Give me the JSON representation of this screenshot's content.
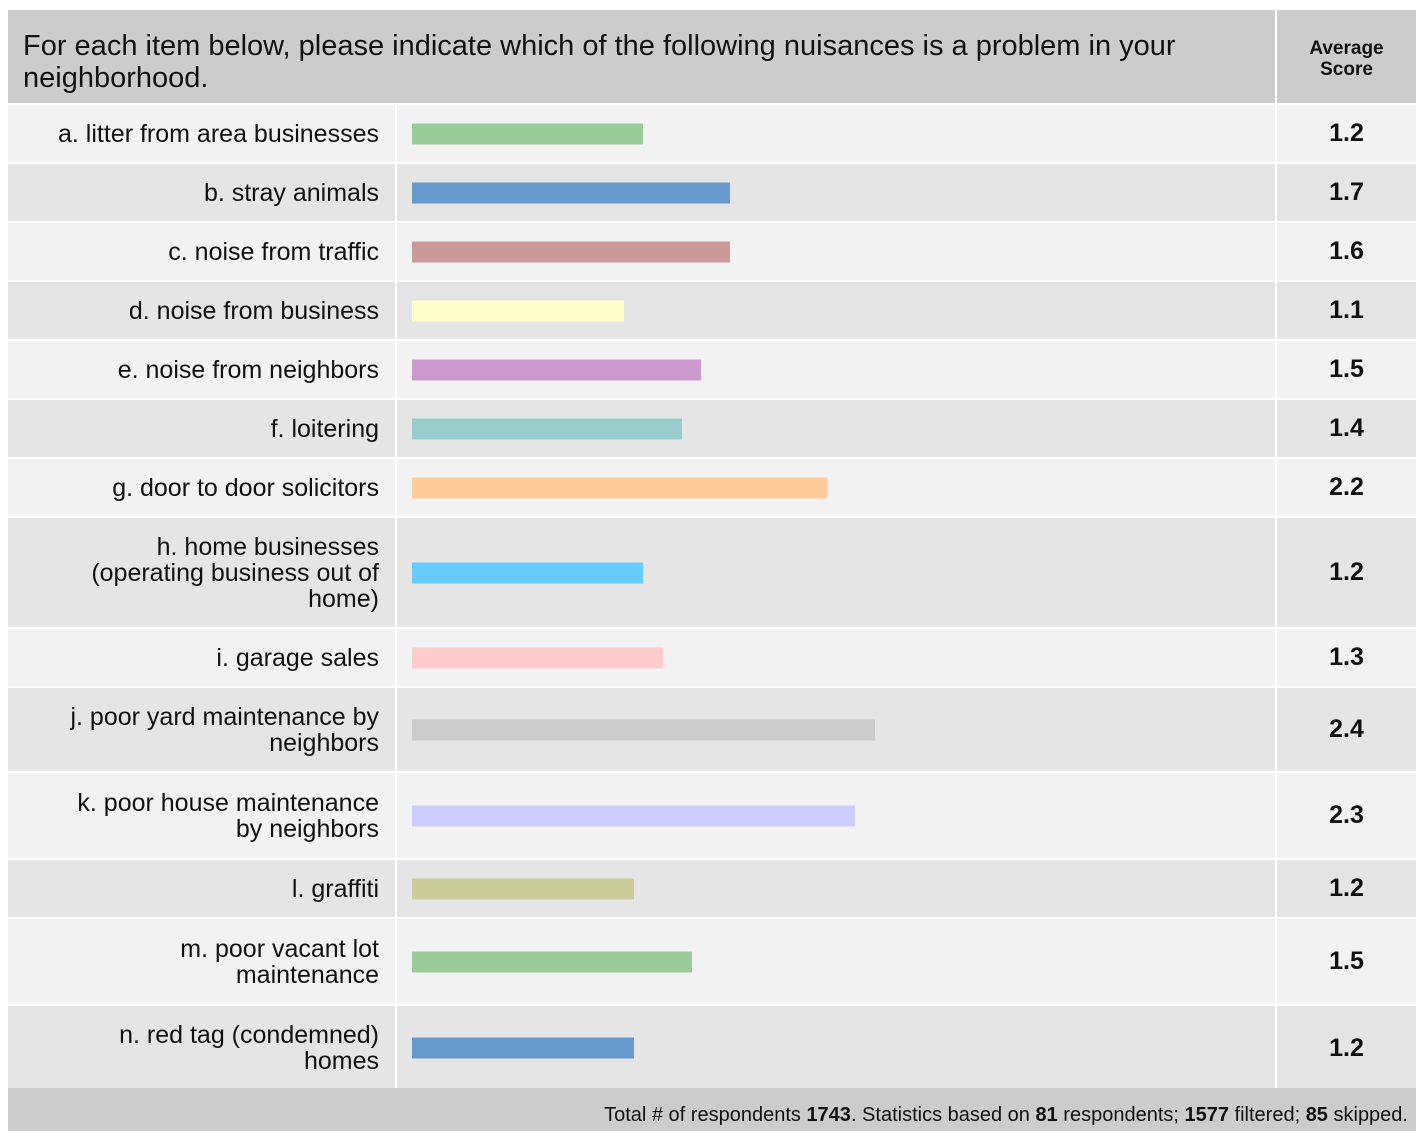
{
  "question": "For each item below, please indicate which of the following nuisances is a problem in your neighborhood.",
  "score_header_line1": "Average",
  "score_header_line2": "Score",
  "chart_data": {
    "type": "bar",
    "orientation": "horizontal",
    "xlim": [
      0,
      5
    ],
    "categories": [
      "a.  litter from area businesses",
      "b.  stray animals",
      "c.  noise from traffic",
      "d.  noise from business",
      "e.  noise from neighbors",
      "f.   loitering",
      "g.  door to door solicitors",
      "h.  home businesses (operating business out of home)",
      "i.   garage sales",
      "j.   poor yard maintenance by neighbors",
      "k.  poor house maintenance by neighbors",
      "l.   graffiti",
      "m. poor vacant lot maintenance",
      "n.  red tag (condemned) homes"
    ],
    "values": [
      1.2,
      1.65,
      1.65,
      1.1,
      1.5,
      1.4,
      2.15,
      1.2,
      1.3,
      2.4,
      2.3,
      1.15,
      1.45,
      1.15
    ],
    "colors": [
      "#99cc99",
      "#6699cc",
      "#cc9999",
      "#ffffcc",
      "#cc99cc",
      "#99cccc",
      "#ffcc99",
      "#66ccff",
      "#ffcccc",
      "#cccccc",
      "#ccccff",
      "#cccc99",
      "#99cc99",
      "#6699cc"
    ]
  },
  "rows": [
    {
      "label": "a.  litter from area businesses",
      "score": "1.2"
    },
    {
      "label": "b.  stray animals",
      "score": "1.7"
    },
    {
      "label": "c.  noise from traffic",
      "score": "1.6"
    },
    {
      "label": "d.  noise from business",
      "score": "1.1"
    },
    {
      "label": "e.  noise from neighbors",
      "score": "1.5"
    },
    {
      "label": "f.   loitering",
      "score": "1.4"
    },
    {
      "label": "g.  door to door solicitors",
      "score": "2.2"
    },
    {
      "label_lines": [
        "h.  home businesses",
        "(operating business out of",
        "home)"
      ],
      "score": "1.2"
    },
    {
      "label": "i.   garage sales",
      "score": "1.3"
    },
    {
      "label_lines": [
        "j.   poor yard maintenance by",
        "neighbors"
      ],
      "score": "2.4"
    },
    {
      "label_lines": [
        "k.  poor house maintenance",
        "by neighbors"
      ],
      "score": "2.3"
    },
    {
      "label": "l.   graffiti",
      "score": "1.2"
    },
    {
      "label_lines": [
        "m. poor vacant lot",
        "maintenance"
      ],
      "score": "1.5"
    },
    {
      "label_lines": [
        "n.  red tag (condemned)",
        "homes"
      ],
      "score": "1.2"
    }
  ],
  "footer": {
    "t1": "Total # of respondents ",
    "total": "1743",
    "t2": ". Statistics based on ",
    "based": "81",
    "t3": " respondents; ",
    "filtered": "1577",
    "t4": " filtered; ",
    "skipped": "85",
    "t5": " skipped."
  }
}
